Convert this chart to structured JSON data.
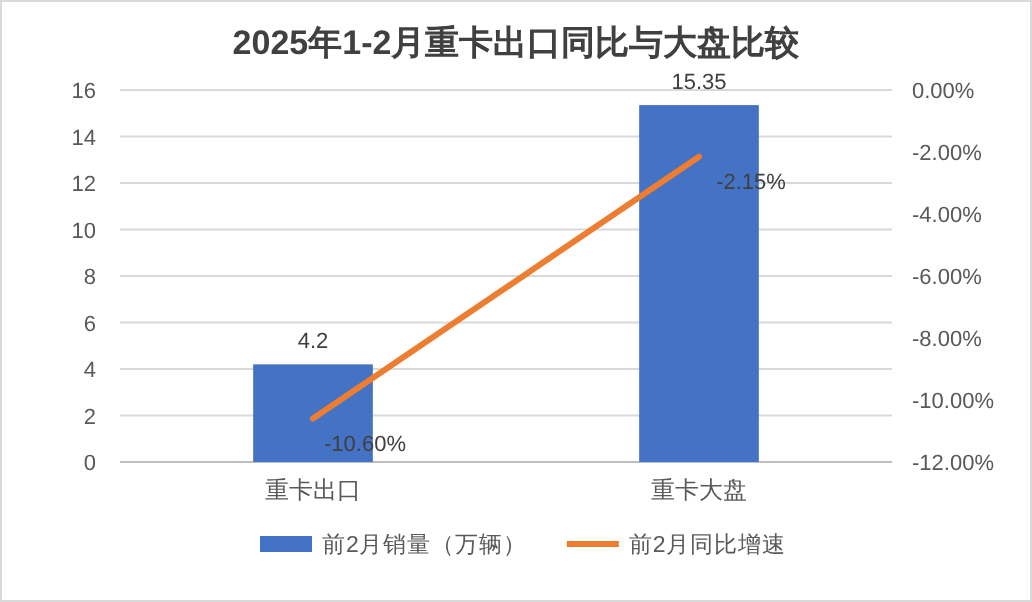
{
  "chart_data": {
    "type": "bar",
    "title": "2025年1-2月重卡出口同比与大盘比较",
    "categories": [
      "重卡出口",
      "重卡大盘"
    ],
    "series": [
      {
        "name": "前2月销量（万辆）",
        "color": "#4472c4",
        "values": [
          4.2,
          15.35
        ],
        "value_labels": [
          "4.2",
          "15.35"
        ]
      },
      {
        "name": "前2月同比增速",
        "type": "line",
        "axis": "y2",
        "color": "#ed7d31",
        "values": [
          -10.6,
          -2.15
        ],
        "value_labels": [
          "-10.60%",
          "-2.15%"
        ]
      }
    ],
    "ylim": [
      0,
      16
    ],
    "yticks": [
      0,
      2,
      4,
      6,
      8,
      10,
      12,
      14,
      16
    ],
    "y2lim": [
      -12,
      0
    ],
    "y2ticks": [
      {
        "value": 0,
        "label": "0.00%"
      },
      {
        "value": -2,
        "label": "-2.00%"
      },
      {
        "value": -4,
        "label": "-4.00%"
      },
      {
        "value": -6,
        "label": "-6.00%"
      },
      {
        "value": -8,
        "label": "-8.00%"
      },
      {
        "value": -10,
        "label": "-10.00%"
      },
      {
        "value": -12,
        "label": "-12.00%"
      }
    ],
    "grid": "y",
    "legend": "bottom",
    "marker": "none",
    "line_style": "solid"
  }
}
